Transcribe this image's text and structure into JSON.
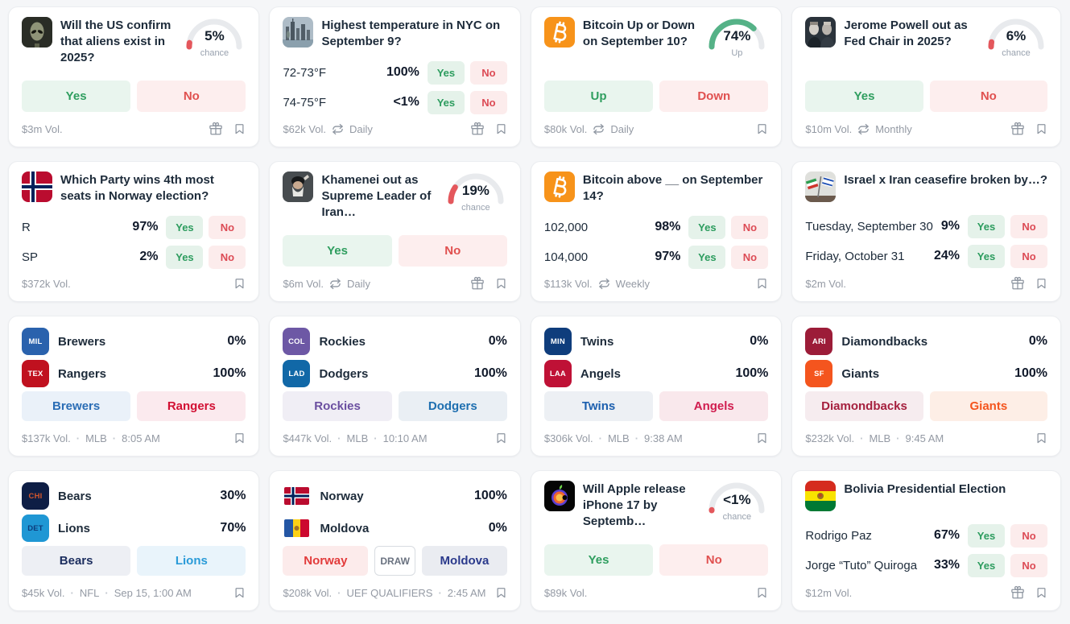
{
  "labels": {
    "yes": "Yes",
    "no": "No",
    "dot": "·"
  },
  "colors": {
    "gauge_red": "#e4575c",
    "gauge_green": "#55b287",
    "yes_green": "#2f9e5f",
    "no_red": "#e0504f",
    "page_bg": "#f5f6f8"
  },
  "cards": [
    {
      "type": "binary",
      "icon": "alien",
      "title": "Will the US confirm that aliens exist in 2025?",
      "gauge": {
        "percent": 5,
        "label": "5%",
        "caption": "chance",
        "color": "#e4575c"
      },
      "buttons": [
        {
          "label": "Yes",
          "style": "yes"
        },
        {
          "label": "No",
          "style": "no"
        }
      ],
      "footer": {
        "volume": "$3m Vol.",
        "gift": true,
        "bookmark": true
      }
    },
    {
      "type": "outcomes",
      "icon": "nyc",
      "title": "Highest temperature in NYC on September 9?",
      "outcomes": [
        {
          "name": "72-73°F",
          "percent": "100%"
        },
        {
          "name": "74-75°F",
          "percent": "<1%"
        }
      ],
      "footer": {
        "volume": "$62k Vol.",
        "recurrence": "Daily",
        "gift": true,
        "bookmark": true
      }
    },
    {
      "type": "binary",
      "icon": "bitcoin",
      "title": "Bitcoin Up or Down on September 10?",
      "gauge": {
        "percent": 74,
        "label": "74%",
        "caption": "Up",
        "color": "#55b287"
      },
      "buttons": [
        {
          "label": "Up",
          "style": "yes"
        },
        {
          "label": "Down",
          "style": "no"
        }
      ],
      "footer": {
        "volume": "$80k Vol.",
        "recurrence": "Daily",
        "bookmark": true
      }
    },
    {
      "type": "binary",
      "icon": "powell",
      "title": "Jerome Powell out as Fed Chair in 2025?",
      "gauge": {
        "percent": 6,
        "label": "6%",
        "caption": "chance",
        "color": "#e4575c"
      },
      "buttons": [
        {
          "label": "Yes",
          "style": "yes"
        },
        {
          "label": "No",
          "style": "no"
        }
      ],
      "footer": {
        "volume": "$10m Vol.",
        "recurrence": "Monthly",
        "gift": true,
        "bookmark": true
      }
    },
    {
      "type": "outcomes",
      "icon": "norway-flag",
      "title": "Which Party wins 4th most seats in Norway election?",
      "outcomes": [
        {
          "name": "R",
          "percent": "97%"
        },
        {
          "name": "SP",
          "percent": "2%"
        }
      ],
      "footer": {
        "volume": "$372k Vol.",
        "bookmark": true
      }
    },
    {
      "type": "binary",
      "icon": "khamenei",
      "title": "Khamenei out as Supreme Leader of Iran…",
      "gauge": {
        "percent": 19,
        "label": "19%",
        "caption": "chance",
        "color": "#e4575c"
      },
      "buttons": [
        {
          "label": "Yes",
          "style": "yes"
        },
        {
          "label": "No",
          "style": "no"
        }
      ],
      "footer": {
        "volume": "$6m Vol.",
        "recurrence": "Daily",
        "gift": true,
        "bookmark": true
      }
    },
    {
      "type": "outcomes",
      "icon": "bitcoin",
      "title": "Bitcoin above __ on September 14?",
      "outcomes": [
        {
          "name": "102,000",
          "percent": "98%"
        },
        {
          "name": "104,000",
          "percent": "97%"
        }
      ],
      "footer": {
        "volume": "$113k Vol.",
        "recurrence": "Weekly",
        "bookmark": true
      }
    },
    {
      "type": "outcomes",
      "icon": "israel-iran",
      "title_nowrap": true,
      "title": "Israel x Iran ceasefire broken by…?",
      "outcomes": [
        {
          "name": "Tuesday, September 30",
          "percent": "9%"
        },
        {
          "name": "Friday, October 31",
          "percent": "24%"
        }
      ],
      "footer": {
        "volume": "$2m Vol.",
        "gift": true,
        "bookmark": true
      }
    },
    {
      "type": "sports",
      "teams": [
        {
          "abbr": "MIL",
          "badge_bg": "#2a62ad",
          "badge_fg": "#ffffff",
          "name": "Brewers",
          "percent": "0%"
        },
        {
          "abbr": "TEX",
          "badge_bg": "#c0111f",
          "badge_fg": "#ffffff",
          "name": "Rangers",
          "percent": "100%"
        }
      ],
      "buttons": [
        {
          "label": "Brewers",
          "color": "#2a6db5",
          "bg": "#eaf1f9"
        },
        {
          "label": "Rangers",
          "color": "#d21033",
          "bg": "#fbeaee"
        }
      ],
      "footer": {
        "volume": "$137k Vol.",
        "league": "MLB",
        "time": "8:05 AM",
        "bookmark": true
      }
    },
    {
      "type": "sports",
      "teams": [
        {
          "abbr": "COL",
          "badge_bg": "#6d58a5",
          "badge_fg": "#ffffff",
          "name": "Rockies",
          "percent": "0%"
        },
        {
          "abbr": "LAD",
          "badge_bg": "#1168a7",
          "badge_fg": "#ffffff",
          "name": "Dodgers",
          "percent": "100%"
        }
      ],
      "buttons": [
        {
          "label": "Rockies",
          "color": "#6b4fa0",
          "bg": "#f0eef5"
        },
        {
          "label": "Dodgers",
          "color": "#1e6fb0",
          "bg": "#eaeff4"
        }
      ],
      "footer": {
        "volume": "$447k Vol.",
        "league": "MLB",
        "time": "10:10 AM",
        "bookmark": true
      }
    },
    {
      "type": "sports",
      "teams": [
        {
          "abbr": "MIN",
          "badge_bg": "#0f3d7c",
          "badge_fg": "#ffffff",
          "name": "Twins",
          "percent": "0%"
        },
        {
          "abbr": "LAA",
          "badge_bg": "#bf1136",
          "badge_fg": "#ffffff",
          "name": "Angels",
          "percent": "100%"
        }
      ],
      "buttons": [
        {
          "label": "Twins",
          "color": "#1c5fae",
          "bg": "#edf0f4"
        },
        {
          "label": "Angels",
          "color": "#d01c4e",
          "bg": "#f9e8ec"
        }
      ],
      "footer": {
        "volume": "$306k Vol.",
        "league": "MLB",
        "time": "9:38 AM",
        "bookmark": true
      }
    },
    {
      "type": "sports",
      "teams": [
        {
          "abbr": "ARI",
          "badge_bg": "#9c1c38",
          "badge_fg": "#ffffff",
          "name": "Diamondbacks",
          "percent": "0%"
        },
        {
          "abbr": "SF",
          "badge_bg": "#f4551e",
          "badge_fg": "#ffffff",
          "name": "Giants",
          "percent": "100%"
        }
      ],
      "buttons": [
        {
          "label": "Diamondbacks",
          "color": "#a5203e",
          "bg": "#f6ecef"
        },
        {
          "label": "Giants",
          "color": "#f4551e",
          "bg": "#fdeee6"
        }
      ],
      "footer": {
        "volume": "$232k Vol.",
        "league": "MLB",
        "time": "9:45 AM",
        "bookmark": true
      }
    },
    {
      "type": "sports",
      "teams": [
        {
          "abbr": "CHI",
          "badge_bg": "#0e1e45",
          "badge_fg": "#d4562c",
          "name": "Bears",
          "percent": "30%"
        },
        {
          "abbr": "DET",
          "badge_bg": "#1f97d4",
          "badge_fg": "#0d3c7c",
          "name": "Lions",
          "percent": "70%"
        }
      ],
      "buttons": [
        {
          "label": "Bears",
          "color": "#1b2d5e",
          "bg": "#edeff4"
        },
        {
          "label": "Lions",
          "color": "#2a9bd8",
          "bg": "#e9f4fb"
        }
      ],
      "footer": {
        "volume": "$45k Vol.",
        "league": "NFL",
        "time": "Sep 15, 1:00 AM",
        "bookmark": true
      }
    },
    {
      "type": "sports",
      "teams": [
        {
          "flag": "norway",
          "name": "Norway",
          "percent": "100%"
        },
        {
          "flag": "moldova",
          "name": "Moldova",
          "percent": "0%"
        }
      ],
      "buttons": [
        {
          "label": "Norway",
          "color": "#e23b3b",
          "bg": "#fcebeb"
        },
        {
          "label": "DRAW",
          "draw": true
        },
        {
          "label": "Moldova",
          "color": "#2b3a8c",
          "bg": "#eaecf1"
        }
      ],
      "footer": {
        "volume": "$208k Vol.",
        "league": "UEF QUALIFIERS",
        "time": "2:45 AM",
        "bookmark": true
      }
    },
    {
      "type": "binary",
      "icon": "apple",
      "title": "Will Apple release iPhone 17 by Septemb…",
      "gauge": {
        "percent": 0.8,
        "label": "<1%",
        "caption": "chance",
        "color": "#e4575c"
      },
      "buttons": [
        {
          "label": "Yes",
          "style": "yes"
        },
        {
          "label": "No",
          "style": "no"
        }
      ],
      "footer": {
        "volume": "$89k Vol.",
        "bookmark": true
      }
    },
    {
      "type": "outcomes",
      "icon": "bolivia-flag",
      "title": "Bolivia Presidential Election",
      "outcomes": [
        {
          "name": "Rodrigo Paz",
          "percent": "67%"
        },
        {
          "name": "Jorge “Tuto” Quiroga",
          "percent": "33%"
        }
      ],
      "footer": {
        "volume": "$12m Vol.",
        "gift": true,
        "bookmark": true
      }
    }
  ]
}
